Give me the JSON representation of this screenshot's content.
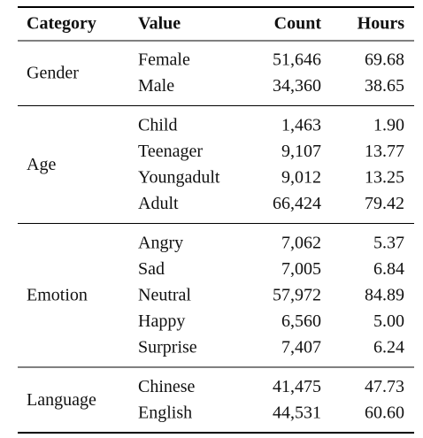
{
  "table": {
    "header": [
      "Category",
      "Value",
      "Count",
      "Hours"
    ],
    "groups": [
      {
        "category": "Gender",
        "rows": [
          [
            "Female",
            "51,646",
            "69.68"
          ],
          [
            "Male",
            "34,360",
            "38.65"
          ]
        ]
      },
      {
        "category": "Age",
        "rows": [
          [
            "Child",
            "1,463",
            "1.90"
          ],
          [
            "Teenager",
            "9,107",
            "13.77"
          ],
          [
            "Youngadult",
            "9,012",
            "13.25"
          ],
          [
            "Adult",
            "66,424",
            "79.42"
          ]
        ]
      },
      {
        "category": "Emotion",
        "rows": [
          [
            "Angry",
            "7,062",
            "5.37"
          ],
          [
            "Sad",
            "7,005",
            "6.84"
          ],
          [
            "Neutral",
            "57,972",
            "84.89"
          ],
          [
            "Happy",
            "6,560",
            "5.00"
          ],
          [
            "Surprise",
            "7,407",
            "6.24"
          ]
        ]
      },
      {
        "category": "Language",
        "rows": [
          [
            "Chinese",
            "41,475",
            "47.73"
          ],
          [
            "English",
            "44,531",
            "60.60"
          ]
        ]
      }
    ]
  }
}
